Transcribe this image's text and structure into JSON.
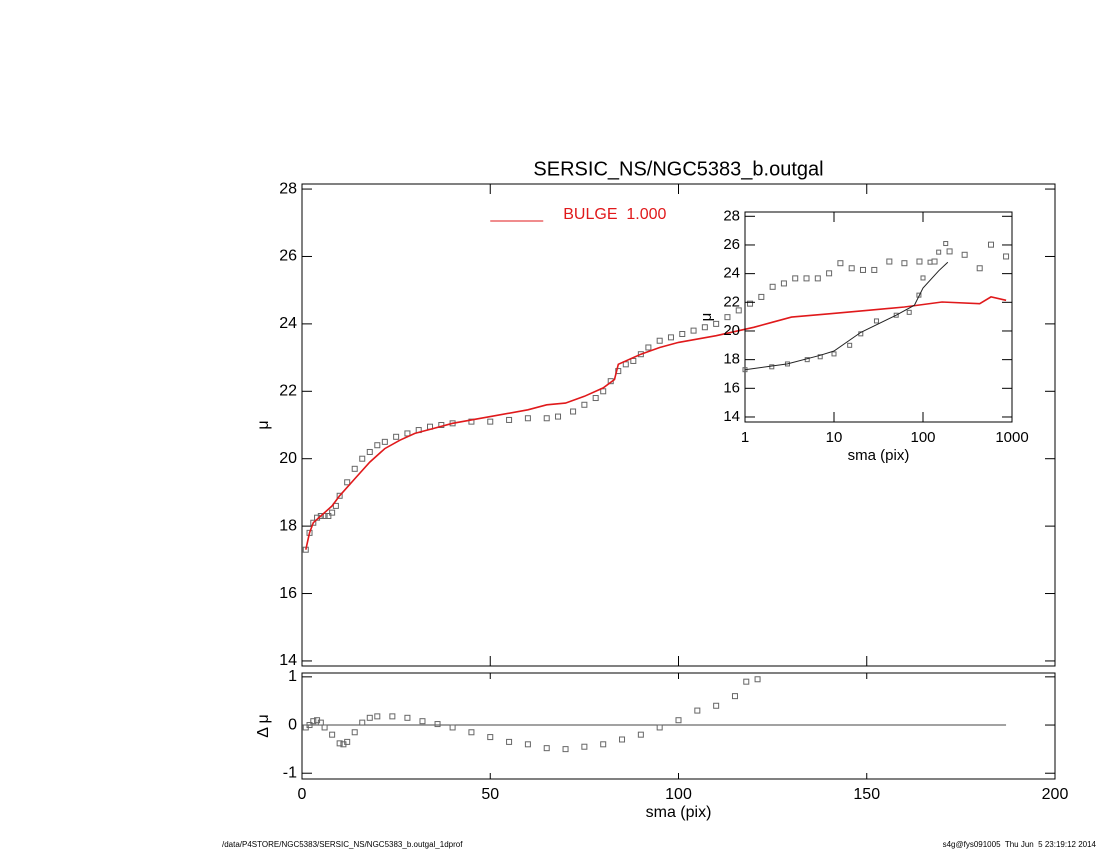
{
  "footer": {
    "left": "/data/P4STORE/NGC5383/SERSIC_NS/NGC5383_b.outgal_1dprof",
    "right": "s4g@fys091005  Thu Jun  5 23:19:12 2014"
  },
  "chart_data": [
    {
      "type": "line",
      "title": "SERSIC_NS/NGC5383_b.outgal",
      "y_label": "μ",
      "xlim": [
        0,
        200
      ],
      "xticks": [
        0,
        50,
        100,
        150,
        200
      ],
      "show_xtick_labels": false,
      "ylim": [
        13.85,
        28.15
      ],
      "yticks": [
        14,
        16,
        18,
        20,
        22,
        24,
        26,
        28
      ],
      "legend": "top",
      "series": [
        {
          "style": "markers",
          "color": "#666666",
          "x": [
            1,
            2,
            3,
            4,
            5,
            6,
            7,
            8,
            9,
            10,
            12,
            14,
            16,
            18,
            20,
            22,
            25,
            28,
            31,
            34,
            37,
            40,
            45,
            50,
            55,
            60,
            65,
            68,
            72,
            75,
            78,
            80,
            82,
            84,
            86,
            88,
            90,
            92,
            95,
            98,
            101,
            104,
            107,
            110,
            113,
            116,
            119,
            122,
            125,
            128,
            131,
            134,
            137,
            140,
            143,
            146,
            149,
            152,
            156,
            160,
            164,
            168,
            172,
            176,
            180,
            183,
            187
          ],
          "values": [
            17.3,
            17.8,
            18.1,
            18.25,
            18.3,
            18.3,
            18.3,
            18.4,
            18.6,
            18.9,
            19.3,
            19.7,
            20.0,
            20.2,
            20.4,
            20.5,
            20.65,
            20.75,
            20.85,
            20.95,
            21.0,
            21.05,
            21.1,
            21.1,
            21.15,
            21.2,
            21.2,
            21.25,
            21.4,
            21.6,
            21.8,
            22.0,
            22.3,
            22.6,
            22.8,
            22.9,
            23.1,
            23.3,
            23.5,
            23.6,
            23.7,
            23.8,
            23.9,
            24.0,
            24.2,
            24.4,
            24.6,
            24.8,
            25.1,
            25.2,
            25.35,
            25.35,
            25.35,
            25.5,
            25.8,
            25.65,
            25.6,
            25.6,
            25.85,
            25.8,
            25.85,
            25.85,
            26.15,
            26.05,
            25.65,
            26.35,
            26.0
          ]
        },
        {
          "style": "line",
          "name": "BULGE  1.000",
          "color": "#e0191b",
          "x": [
            1,
            2,
            3,
            5,
            8,
            10,
            14,
            18,
            22,
            26,
            30,
            35,
            40,
            50,
            60,
            65,
            70,
            75,
            80,
            83,
            84,
            90,
            95,
            100,
            110,
            120,
            125,
            130,
            140,
            150,
            160,
            170,
            180,
            183,
            187
          ],
          "values": [
            17.3,
            17.8,
            18.1,
            18.3,
            18.6,
            18.9,
            19.4,
            19.9,
            20.3,
            20.55,
            20.75,
            20.9,
            21.05,
            21.25,
            21.45,
            21.6,
            21.65,
            21.85,
            22.1,
            22.35,
            22.8,
            23.1,
            23.3,
            23.45,
            23.65,
            23.9,
            24.05,
            24.2,
            24.3,
            24.4,
            24.5,
            24.65,
            24.6,
            24.8,
            24.7
          ]
        }
      ]
    },
    {
      "type": "scatter",
      "x_label": "sma (pix)",
      "y_label": "Δ μ",
      "xlim": [
        0,
        200
      ],
      "xticks": [
        0,
        50,
        100,
        150,
        200
      ],
      "ylim": [
        -1.12,
        1.08
      ],
      "yticks": [
        -1,
        0,
        1
      ],
      "reference_line": 0,
      "series": [
        {
          "style": "markers",
          "color": "#666666",
          "x": [
            1,
            2,
            3,
            4,
            5,
            6,
            8,
            10,
            11,
            12,
            14,
            16,
            18,
            20,
            24,
            28,
            32,
            36,
            40,
            45,
            50,
            55,
            60,
            65,
            70,
            75,
            80,
            85,
            90,
            95,
            100,
            105,
            110,
            115,
            118,
            121
          ],
          "values": [
            -0.05,
            0.0,
            0.08,
            0.1,
            0.05,
            -0.05,
            -0.2,
            -0.38,
            -0.4,
            -0.35,
            -0.15,
            0.05,
            0.15,
            0.18,
            0.18,
            0.15,
            0.08,
            0.02,
            -0.05,
            -0.15,
            -0.25,
            -0.35,
            -0.4,
            -0.48,
            -0.5,
            -0.45,
            -0.4,
            -0.3,
            -0.2,
            -0.05,
            0.1,
            0.3,
            0.4,
            0.6,
            0.9,
            0.95
          ]
        }
      ]
    },
    {
      "type": "line",
      "x_label": "sma (pix)",
      "y_label": "μ",
      "xscale": "log",
      "xlim": [
        1,
        1000
      ],
      "xticks": [
        1,
        10,
        100,
        1000
      ],
      "ylim": [
        13.65,
        28.3
      ],
      "yticks": [
        14,
        16,
        18,
        20,
        22,
        24,
        26,
        28
      ],
      "series": [
        {
          "style": "markers",
          "color": "#666666",
          "x": [
            1,
            2,
            3,
            5,
            7,
            10,
            15,
            20,
            30,
            50,
            70,
            90,
            100,
            120,
            150,
            180
          ],
          "values": [
            17.3,
            17.5,
            17.7,
            18.0,
            18.2,
            18.4,
            19.0,
            19.8,
            20.7,
            21.1,
            21.3,
            22.5,
            23.7,
            24.8,
            25.5,
            26.1
          ]
        },
        {
          "style": "line",
          "color": "#222222",
          "x": [
            1,
            3,
            7,
            10,
            20,
            50,
            80,
            100,
            150,
            190
          ],
          "values": [
            17.3,
            17.7,
            18.3,
            18.6,
            19.9,
            21.1,
            21.8,
            23.0,
            24.2,
            24.8
          ]
        }
      ]
    }
  ]
}
